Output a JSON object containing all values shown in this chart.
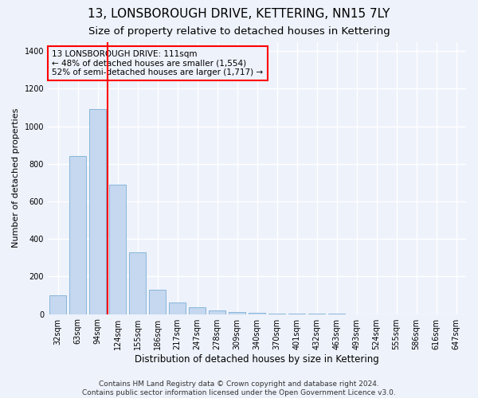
{
  "title": "13, LONSBOROUGH DRIVE, KETTERING, NN15 7LY",
  "subtitle": "Size of property relative to detached houses in Kettering",
  "xlabel": "Distribution of detached houses by size in Kettering",
  "ylabel": "Number of detached properties",
  "categories": [
    "32sqm",
    "63sqm",
    "94sqm",
    "124sqm",
    "155sqm",
    "186sqm",
    "217sqm",
    "247sqm",
    "278sqm",
    "309sqm",
    "340sqm",
    "370sqm",
    "401sqm",
    "432sqm",
    "463sqm",
    "493sqm",
    "524sqm",
    "555sqm",
    "586sqm",
    "616sqm",
    "647sqm"
  ],
  "values": [
    100,
    840,
    1090,
    690,
    330,
    130,
    60,
    35,
    20,
    10,
    5,
    3,
    2,
    1,
    1,
    0,
    0,
    0,
    0,
    0,
    0
  ],
  "bar_color": "#c5d8f0",
  "bar_edge_color": "#7aafd4",
  "vline_x": 2.5,
  "vline_color": "red",
  "annotation_text": "13 LONSBOROUGH DRIVE: 111sqm\n← 48% of detached houses are smaller (1,554)\n52% of semi-detached houses are larger (1,717) →",
  "annotation_box_color": "red",
  "ylim": [
    0,
    1450
  ],
  "yticks": [
    0,
    200,
    400,
    600,
    800,
    1000,
    1200,
    1400
  ],
  "footer_line1": "Contains HM Land Registry data © Crown copyright and database right 2024.",
  "footer_line2": "Contains public sector information licensed under the Open Government Licence v3.0.",
  "background_color": "#eef2fb",
  "grid_color": "white",
  "title_fontsize": 11,
  "subtitle_fontsize": 9.5,
  "tick_fontsize": 7,
  "ylabel_fontsize": 8,
  "xlabel_fontsize": 8.5,
  "footer_fontsize": 6.5,
  "annotation_fontsize": 7.5
}
